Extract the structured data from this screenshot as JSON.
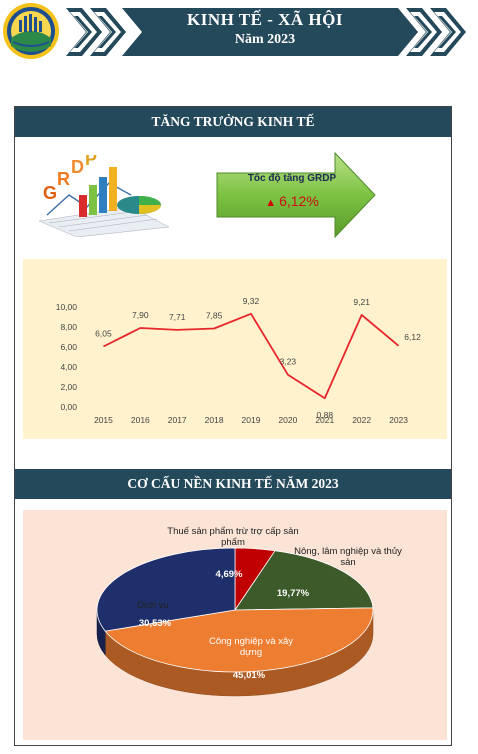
{
  "header": {
    "title": "KINH TẾ - XÃ HỘI",
    "subtitle": "Năm 2023",
    "colors": {
      "banner": "#24495a",
      "chevron": "#24495a"
    }
  },
  "growth_section": {
    "title": "TĂNG TRƯỞNG KINH TẾ",
    "grdp_art_letters": "GRDP",
    "arrow_label": "Tốc độ tăng GRDP",
    "arrow_value": "6,12%",
    "arrow_icon": "up-triangle-icon",
    "colors": {
      "arrow_fill": "#7dc242",
      "arrow_value": "#c81010"
    }
  },
  "structure_section": {
    "title": "CƠ CẤU NỀN KINH TẾ  NĂM 2023"
  },
  "chart_data": [
    {
      "type": "line",
      "x": [
        "2015",
        "2016",
        "2017",
        "2018",
        "2019",
        "2020",
        "2021",
        "2022",
        "2023"
      ],
      "series": [
        {
          "values": [
            6.05,
            7.9,
            7.71,
            7.85,
            9.32,
            3.23,
            0.88,
            9.21,
            6.12
          ],
          "labels": [
            "6,05",
            "7,90",
            "7,71",
            "7,85",
            "9,32",
            "3,23",
            "0,88",
            "9,21",
            "6,12"
          ],
          "color": "#e8262b"
        }
      ],
      "ylim": [
        0,
        10
      ],
      "yticks": [
        "0,00",
        "2,00",
        "4,00",
        "6,00",
        "8,00",
        "10,00"
      ],
      "ytick_values": [
        0,
        2,
        4,
        6,
        8,
        10
      ],
      "grid": false,
      "background": "#fff2cc"
    },
    {
      "type": "pie",
      "slices": [
        {
          "label": "Nông, lâm nghiệp và thủy sản",
          "value": 19.77,
          "display": "19,77%",
          "color": "#3c5a2a"
        },
        {
          "label": "Công nghiệp và xây dựng",
          "value": 45.01,
          "display": "45,01%",
          "color": "#ed7d31"
        },
        {
          "label": "Dịch vụ",
          "value": 30.53,
          "display": "30,53%",
          "color": "#1f2f6b"
        },
        {
          "label": "Thuế sản phẩm trừ trợ cấp sản phẩm",
          "value": 4.69,
          "display": "4,69%",
          "color": "#c00000"
        }
      ],
      "background": "#fbe3d6"
    }
  ]
}
